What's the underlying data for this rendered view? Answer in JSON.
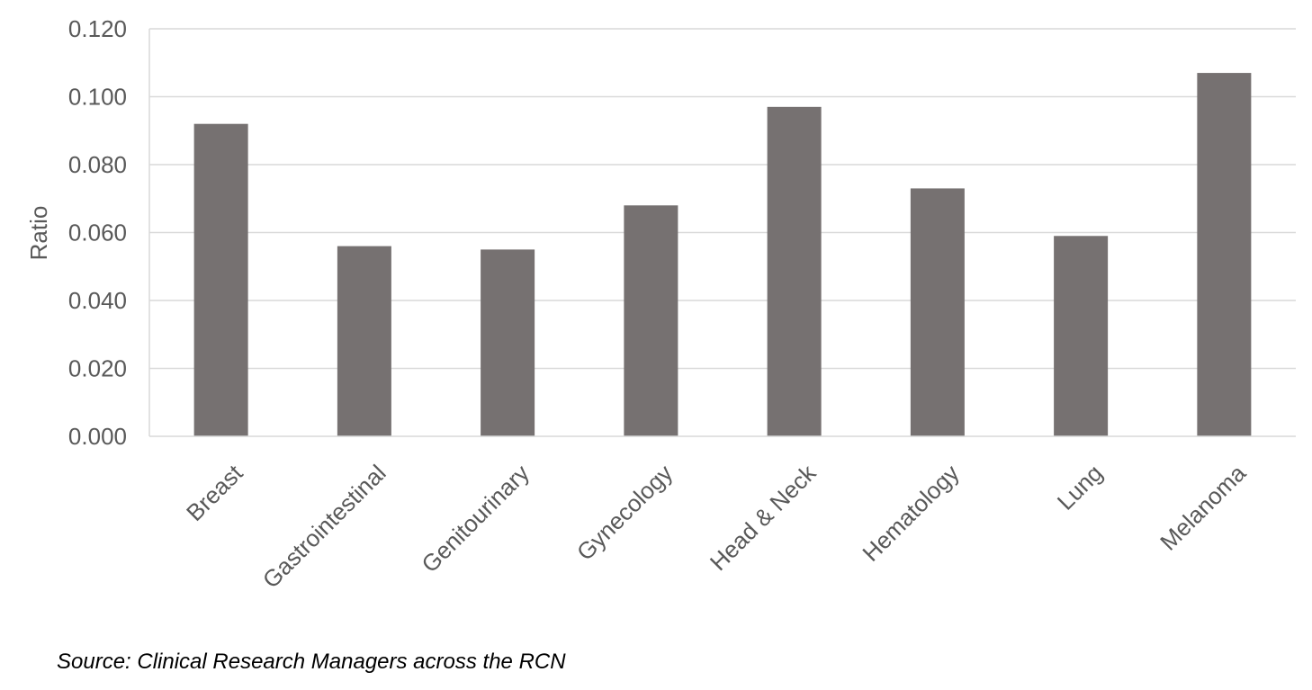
{
  "chart_data": {
    "type": "bar",
    "title": "",
    "xlabel": "",
    "ylabel": "Ratio",
    "categories": [
      "Breast",
      "Gastrointestinal",
      "Genitourinary",
      "Gynecology",
      "Head & Neck",
      "Hematology",
      "Lung",
      "Melanoma"
    ],
    "values": [
      0.092,
      0.056,
      0.055,
      0.068,
      0.097,
      0.073,
      0.059,
      0.107
    ],
    "ylim": [
      0,
      0.12
    ],
    "yticks": [
      "0.000",
      "0.020",
      "0.040",
      "0.060",
      "0.080",
      "0.100",
      "0.120"
    ],
    "grid": true,
    "legend": "none",
    "bar_color": "#767171",
    "grid_color": "#d9d9d9",
    "text_color": "#595959"
  },
  "footer": {
    "source": "Source: Clinical Research Managers across the RCN"
  }
}
